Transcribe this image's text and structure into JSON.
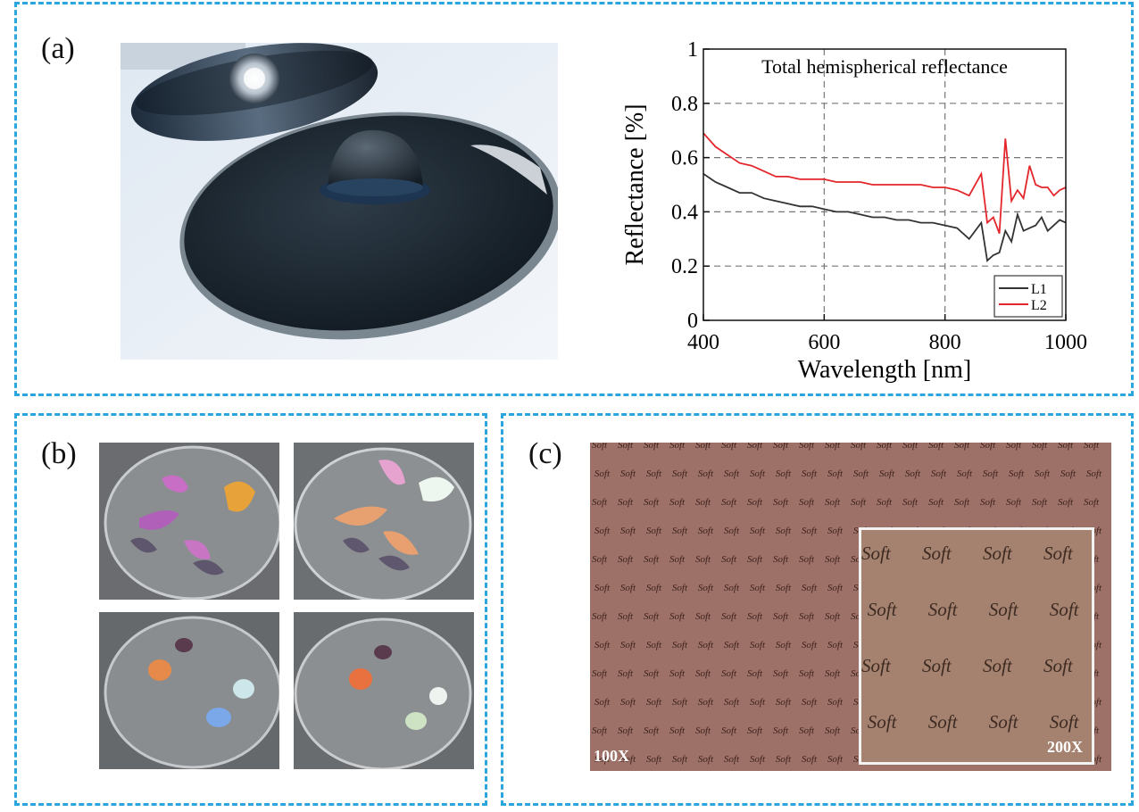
{
  "panels": {
    "a": {
      "label": "(a)"
    },
    "b": {
      "label": "(b)"
    },
    "c": {
      "label": "(c)"
    }
  },
  "photo_c": {
    "word": "Soft",
    "mag_left": "100X",
    "mag_inset": "200X"
  },
  "colors": {
    "border": "#2aa5de",
    "series_L1": "#333333",
    "series_L2": "#e3262b"
  },
  "chart_data": {
    "type": "line",
    "title": "Total hemispherical reflectance",
    "xlabel": "Wavelength [nm]",
    "ylabel": "Reflectance [%]",
    "xlim": [
      400,
      1000
    ],
    "ylim": [
      0,
      1
    ],
    "xticks": [
      "400",
      "600",
      "800",
      "1000"
    ],
    "yticks": [
      "0",
      "0.2",
      "0.4",
      "0.6",
      "0.8",
      "1"
    ],
    "grid": true,
    "legend_position": "bottom-right",
    "series": [
      {
        "name": "L1",
        "x": [
          400,
          420,
          440,
          460,
          480,
          500,
          520,
          540,
          560,
          580,
          600,
          620,
          640,
          660,
          680,
          700,
          720,
          740,
          760,
          780,
          800,
          820,
          840,
          860,
          870,
          880,
          890,
          900,
          910,
          920,
          930,
          940,
          950,
          960,
          970,
          980,
          990,
          1000
        ],
        "y": [
          0.54,
          0.51,
          0.49,
          0.47,
          0.47,
          0.45,
          0.44,
          0.43,
          0.42,
          0.42,
          0.41,
          0.4,
          0.4,
          0.39,
          0.38,
          0.38,
          0.37,
          0.37,
          0.36,
          0.36,
          0.35,
          0.34,
          0.3,
          0.36,
          0.22,
          0.24,
          0.25,
          0.33,
          0.29,
          0.39,
          0.33,
          0.34,
          0.35,
          0.38,
          0.33,
          0.35,
          0.37,
          0.36
        ]
      },
      {
        "name": "L2",
        "x": [
          400,
          420,
          440,
          460,
          480,
          500,
          520,
          540,
          560,
          580,
          600,
          620,
          640,
          660,
          680,
          700,
          720,
          740,
          760,
          780,
          800,
          820,
          840,
          860,
          870,
          880,
          890,
          900,
          910,
          920,
          930,
          940,
          950,
          960,
          970,
          980,
          990,
          1000
        ],
        "y": [
          0.69,
          0.64,
          0.61,
          0.58,
          0.57,
          0.55,
          0.53,
          0.53,
          0.52,
          0.52,
          0.52,
          0.51,
          0.51,
          0.51,
          0.5,
          0.5,
          0.5,
          0.5,
          0.5,
          0.49,
          0.49,
          0.48,
          0.46,
          0.54,
          0.36,
          0.38,
          0.32,
          0.67,
          0.44,
          0.48,
          0.45,
          0.57,
          0.5,
          0.49,
          0.49,
          0.46,
          0.48,
          0.49
        ]
      }
    ]
  }
}
